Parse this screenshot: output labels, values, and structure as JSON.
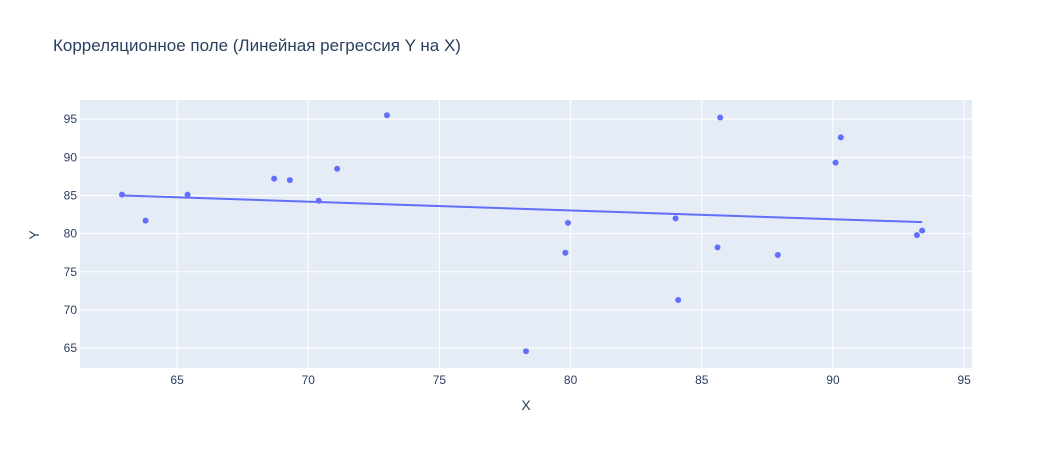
{
  "colors": {
    "plot_bg": "#e5ecf6",
    "grid": "#ffffff",
    "text": "#2a3f5f",
    "series": "#636efa"
  },
  "chart_data": {
    "type": "scatter",
    "title": "Корреляционное поле (Линейная регрессия Y на X)",
    "xlabel": "X",
    "ylabel": "Y",
    "xlim": [
      61.3,
      95.3
    ],
    "ylim": [
      62.4,
      97.5
    ],
    "x_ticks": [
      65,
      70,
      75,
      80,
      85,
      90,
      95
    ],
    "y_ticks": [
      65,
      70,
      75,
      80,
      85,
      90,
      95
    ],
    "grid": true,
    "legend": "none",
    "series": [
      {
        "mode": "markers",
        "points": [
          {
            "x": 62.9,
            "y": 85.1
          },
          {
            "x": 63.8,
            "y": 81.7
          },
          {
            "x": 65.4,
            "y": 85.1
          },
          {
            "x": 68.7,
            "y": 87.2
          },
          {
            "x": 69.3,
            "y": 87.0
          },
          {
            "x": 70.4,
            "y": 84.3
          },
          {
            "x": 71.1,
            "y": 88.5
          },
          {
            "x": 73.0,
            "y": 95.5
          },
          {
            "x": 78.3,
            "y": 64.6
          },
          {
            "x": 79.8,
            "y": 77.5
          },
          {
            "x": 79.9,
            "y": 81.4
          },
          {
            "x": 84.0,
            "y": 82.0
          },
          {
            "x": 84.1,
            "y": 71.3
          },
          {
            "x": 85.6,
            "y": 78.2
          },
          {
            "x": 85.7,
            "y": 95.2
          },
          {
            "x": 87.9,
            "y": 77.2
          },
          {
            "x": 90.1,
            "y": 89.3
          },
          {
            "x": 90.3,
            "y": 92.6
          },
          {
            "x": 93.2,
            "y": 79.8
          },
          {
            "x": 93.4,
            "y": 80.4
          }
        ]
      },
      {
        "mode": "line",
        "points": [
          {
            "x": 62.9,
            "y": 85.0
          },
          {
            "x": 93.4,
            "y": 81.5
          }
        ]
      }
    ]
  }
}
